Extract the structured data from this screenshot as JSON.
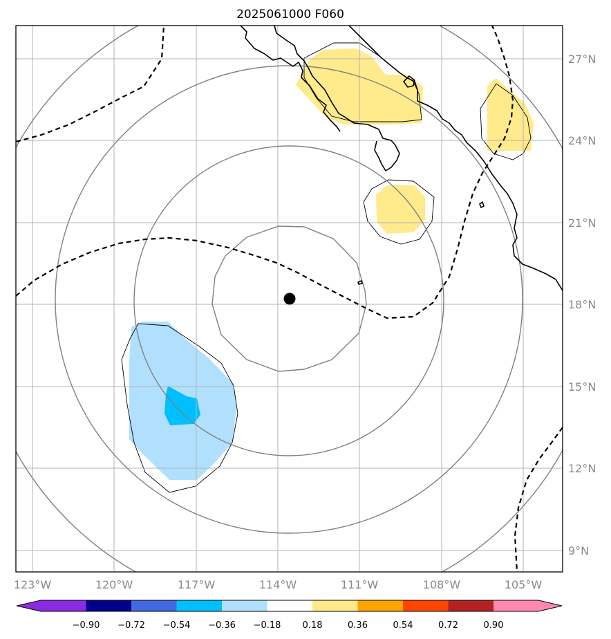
{
  "title": "2025061000 F060",
  "map": {
    "lon_range": [
      -123,
      -104
    ],
    "lat_range": [
      8,
      28
    ],
    "center_marker": {
      "lon": -113.6,
      "lat": 18.2
    },
    "lon_ticks": [
      {
        "value": -123,
        "label": "123°W"
      },
      {
        "value": -120,
        "label": "120°W"
      },
      {
        "value": -117,
        "label": "117°W"
      },
      {
        "value": -114,
        "label": "114°W"
      },
      {
        "value": -111,
        "label": "111°W"
      },
      {
        "value": -108,
        "label": "108°W"
      },
      {
        "value": -105,
        "label": "105°W"
      }
    ],
    "lat_ticks": [
      {
        "value": 27,
        "label": "27°N"
      },
      {
        "value": 24,
        "label": "24°N"
      },
      {
        "value": 21,
        "label": "21°N"
      },
      {
        "value": 18,
        "label": "18°N"
      },
      {
        "value": 15,
        "label": "15°N"
      },
      {
        "value": 12,
        "label": "12°N"
      },
      {
        "value": 9,
        "label": "9°N"
      }
    ]
  },
  "colorbar": {
    "labels": [
      "−0.90",
      "−0.72",
      "−0.54",
      "−0.36",
      "−0.18",
      "0.18",
      "0.36",
      "0.54",
      "0.72",
      "0.90"
    ],
    "colors": [
      "#8a2be2",
      "#00008b",
      "#4169e1",
      "#00bfff",
      "#b0e0fe",
      "#ffffff",
      "#ffe98a",
      "#ffa500",
      "#ff4500",
      "#b22222",
      "#ff88b0"
    ]
  },
  "colors": {
    "frame": "#000000",
    "grid": "#b3b3b3",
    "range_rings": "#808080",
    "coast": "#000000",
    "positive_fill": "#ffea8c",
    "negative_light": "#b0e0fe",
    "negative_mid": "#00bfff"
  }
}
